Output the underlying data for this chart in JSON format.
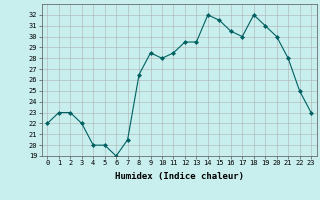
{
  "x": [
    0,
    1,
    2,
    3,
    4,
    5,
    6,
    7,
    8,
    9,
    10,
    11,
    12,
    13,
    14,
    15,
    16,
    17,
    18,
    19,
    20,
    21,
    22,
    23
  ],
  "y": [
    22,
    23,
    23,
    22,
    20,
    20,
    19,
    20.5,
    26.5,
    28.5,
    28,
    28.5,
    29.5,
    29.5,
    32,
    31.5,
    30.5,
    30,
    32,
    31,
    30,
    28,
    25,
    23
  ],
  "xlabel": "Humidex (Indice chaleur)",
  "ylim": [
    19,
    33
  ],
  "xlim": [
    -0.5,
    23.5
  ],
  "yticks": [
    19,
    20,
    21,
    22,
    23,
    24,
    25,
    26,
    27,
    28,
    29,
    30,
    31,
    32
  ],
  "xticks": [
    0,
    1,
    2,
    3,
    4,
    5,
    6,
    7,
    8,
    9,
    10,
    11,
    12,
    13,
    14,
    15,
    16,
    17,
    18,
    19,
    20,
    21,
    22,
    23
  ],
  "line_color": "#006060",
  "marker": "D",
  "marker_size": 2,
  "bg_color": "#c8eeee",
  "grid_color": "#b0b0b0",
  "fig_bg": "#c8eeee"
}
